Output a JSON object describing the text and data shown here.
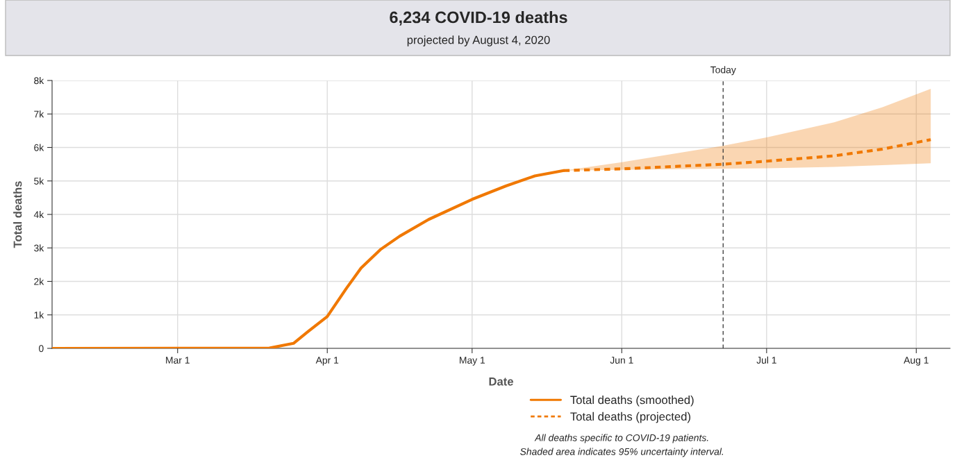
{
  "chart_data": {
    "type": "line",
    "title": "6,234 COVID-19 deaths",
    "subtitle": "projected by August 4, 2020",
    "xlabel": "Date",
    "ylabel": "Total deaths",
    "xlim": [
      "2020-02-04",
      "2020-08-08"
    ],
    "xticks": [
      {
        "value": "2020-03-01",
        "label": "Mar 1"
      },
      {
        "value": "2020-04-01",
        "label": "Apr 1"
      },
      {
        "value": "2020-05-01",
        "label": "May 1"
      },
      {
        "value": "2020-06-01",
        "label": "Jun 1"
      },
      {
        "value": "2020-07-01",
        "label": "Jul 1"
      },
      {
        "value": "2020-08-01",
        "label": "Aug 1"
      }
    ],
    "ylim": [
      0,
      8000
    ],
    "yticks": [
      0,
      {
        "value": 1000,
        "label": "1k"
      },
      {
        "value": 2000,
        "label": "2k"
      },
      {
        "value": 3000,
        "label": "3k"
      },
      {
        "value": 4000,
        "label": "4k"
      },
      {
        "value": 5000,
        "label": "5k"
      },
      {
        "value": 6000,
        "label": "6k"
      },
      {
        "value": 7000,
        "label": "7k"
      },
      {
        "value": 8000,
        "label": "8k"
      }
    ],
    "series": [
      {
        "name": "Total deaths (smoothed)",
        "color": "#f07800",
        "line_style": "solid",
        "x": [
          "2020-02-04",
          "2020-03-20",
          "2020-03-25",
          "2020-03-28",
          "2020-04-01",
          "2020-04-05",
          "2020-04-08",
          "2020-04-12",
          "2020-04-16",
          "2020-04-22",
          "2020-05-01",
          "2020-05-08",
          "2020-05-14",
          "2020-05-20"
        ],
        "values": [
          0,
          10,
          150,
          500,
          950,
          1800,
          2400,
          2950,
          3350,
          3850,
          4450,
          4850,
          5150,
          5310
        ]
      },
      {
        "name": "Total deaths (projected)",
        "color": "#f07800",
        "line_style": "dotted",
        "x": [
          "2020-05-20",
          "2020-06-01",
          "2020-06-22",
          "2020-07-01",
          "2020-07-15",
          "2020-07-25",
          "2020-08-04"
        ],
        "values": [
          5310,
          5360,
          5500,
          5590,
          5750,
          5950,
          6234
        ],
        "lower": [
          5310,
          5330,
          5370,
          5380,
          5420,
          5470,
          5530
        ],
        "upper": [
          5310,
          5560,
          6050,
          6300,
          6750,
          7200,
          7750
        ]
      }
    ],
    "ref_lines": [
      {
        "axis": "x",
        "value": "2020-06-22",
        "label": "Today",
        "color": "#444444",
        "line_style": "dashed"
      }
    ],
    "grid": true,
    "legend": "bottom",
    "annotations": [
      "All deaths specific to COVID-19 patients.",
      "Shaded area indicates 95% uncertainty interval."
    ]
  }
}
